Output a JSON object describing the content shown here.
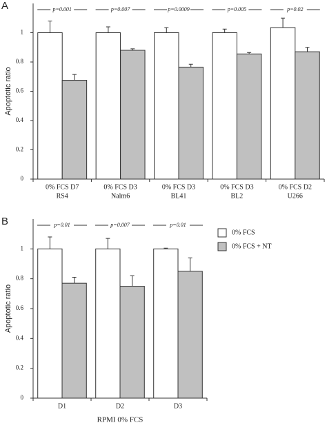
{
  "chart_data": [
    {
      "type": "bar",
      "panel_label": "A",
      "y_label": "Apoptotic ratio",
      "categories": [
        [
          "0% FCS D7",
          "RS4"
        ],
        [
          "0% FCS D3",
          "Nalm6"
        ],
        [
          "0% FCS D3",
          "BL41"
        ],
        [
          "0% FCS D3",
          "BL2"
        ],
        [
          "0% FCS D2",
          "U266"
        ]
      ],
      "series": [
        {
          "color": "#ffffff",
          "values": [
            1,
            1,
            1,
            1,
            1.035
          ],
          "error": [
            0.08,
            0.04,
            0.035,
            0.025,
            0.065
          ]
        },
        {
          "color": "#c0c0c0",
          "values": [
            0.675,
            0.88,
            0.765,
            0.855,
            0.87
          ],
          "error": [
            0.04,
            0.01,
            0.02,
            0.01,
            0.03
          ]
        }
      ],
      "annotations": [
        "p=0.001",
        "p=0.007",
        "p=0.0009",
        "p=0.005",
        "p=0.02"
      ],
      "ylim": [
        0,
        1.2
      ],
      "yticks": [
        0,
        0.2,
        0.4,
        0.6,
        0.8,
        1
      ]
    },
    {
      "type": "bar",
      "panel_label": "B",
      "y_label": "Apoptotic ratio",
      "x_label": "RPMI 0% FCS",
      "categories": [
        [
          "D1"
        ],
        [
          "D2"
        ],
        [
          "D3"
        ]
      ],
      "series": [
        {
          "name": "0% FCS",
          "color": "#ffffff",
          "values": [
            1,
            1,
            1
          ],
          "error": [
            0.08,
            0.07,
            0.005
          ]
        },
        {
          "name": "0% FCS + NT",
          "color": "#c0c0c0",
          "values": [
            0.77,
            0.75,
            0.85
          ],
          "error": [
            0.04,
            0.07,
            0.09
          ]
        }
      ],
      "annotations": [
        "p=0.01",
        "p=0.007",
        "p=0.01"
      ],
      "legend": "right",
      "ylim": [
        0,
        1.2
      ],
      "yticks": [
        0,
        0.2,
        0.4,
        0.6,
        0.8,
        1
      ]
    }
  ]
}
